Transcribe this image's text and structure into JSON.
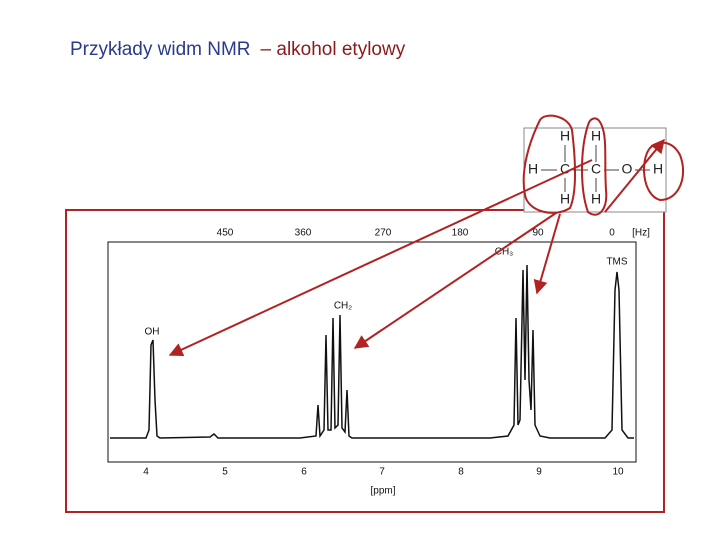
{
  "title": {
    "part1": "Przykłady widm NMR",
    "part2": "– alkohol etylowy"
  },
  "spectrum": {
    "hz_ticks": [
      "450",
      "360",
      "270",
      "180",
      "90",
      "0"
    ],
    "hz_unit": "[Hz]",
    "ppm_ticks": [
      "4",
      "5",
      "6",
      "7",
      "8",
      "9",
      "10"
    ],
    "ppm_unit": "[ppm]",
    "peaks": [
      "OH",
      "CH₂",
      "CH₃",
      "TMS"
    ]
  },
  "molecule": {
    "atoms": [
      "H",
      "H",
      "H",
      "C",
      "C",
      "O",
      "H",
      "H",
      "H"
    ]
  }
}
